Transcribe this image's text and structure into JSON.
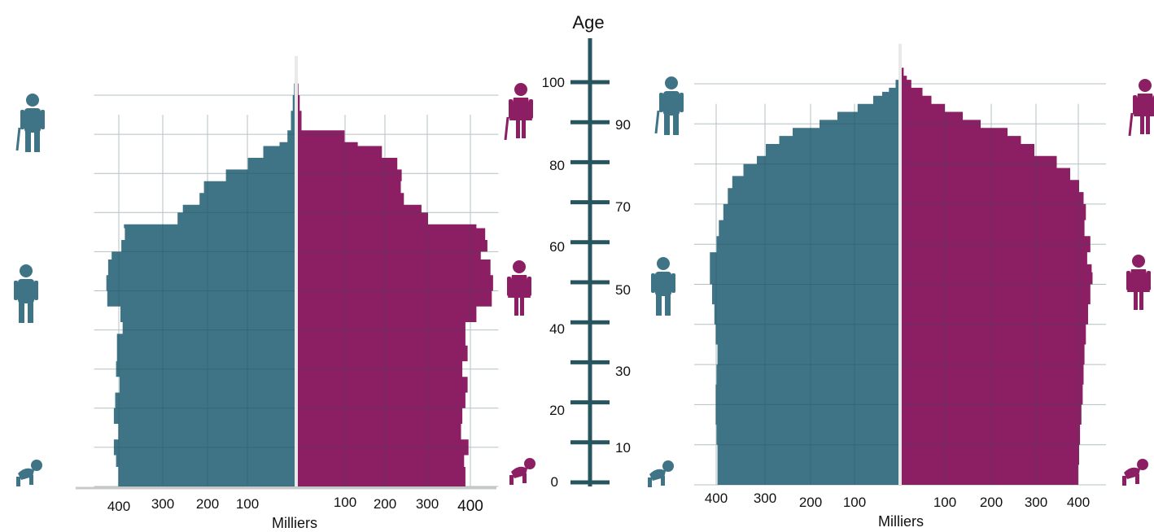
{
  "colors": {
    "male": "#3e7485",
    "female": "#8c1f64",
    "axis": "#26555f",
    "grid": "#2a4f58"
  },
  "icons": {
    "left_male": [
      "elderly-man-icon",
      "man-icon",
      "baby-icon"
    ],
    "left_female": [
      "elderly-woman-icon",
      "woman-icon",
      "baby-icon"
    ],
    "right_male": [
      "elderly-man-icon",
      "man-icon",
      "baby-icon"
    ],
    "right_female": [
      "elderly-woman-icon",
      "woman-icon",
      "baby-icon"
    ]
  },
  "age_axis": {
    "title": "Age",
    "left_ticks": [
      "100",
      "80",
      "60",
      "40",
      "20",
      "0"
    ],
    "right_ticks": [
      "90",
      "70",
      "50",
      "30",
      "10"
    ]
  },
  "chart_data": [
    {
      "type": "bar",
      "orientation": "horizontal-population-pyramid",
      "xlabel": "Milliers",
      "x_tick_labels_male": [
        "400",
        "300",
        "200",
        "100"
      ],
      "x_tick_labels_female": [
        "100",
        "200",
        "300",
        "400"
      ],
      "age_range": [
        0,
        100
      ],
      "grid": true,
      "male": [
        [
          0,
          405
        ],
        [
          5,
          410
        ],
        [
          8,
          415
        ],
        [
          12,
          405
        ],
        [
          16,
          415
        ],
        [
          20,
          412
        ],
        [
          24,
          402
        ],
        [
          28,
          410
        ],
        [
          32,
          408
        ],
        [
          36,
          408
        ],
        [
          39,
          395
        ],
        [
          42,
          400
        ],
        [
          46,
          430
        ],
        [
          50,
          432
        ],
        [
          54,
          428
        ],
        [
          58,
          420
        ],
        [
          60,
          398
        ],
        [
          63,
          390
        ],
        [
          66,
          392
        ],
        [
          67,
          270
        ],
        [
          70,
          258
        ],
        [
          72,
          220
        ],
        [
          75,
          210
        ],
        [
          78,
          160
        ],
        [
          81,
          110
        ],
        [
          84,
          75
        ],
        [
          87,
          38
        ],
        [
          88,
          20
        ],
        [
          91,
          12
        ],
        [
          96,
          8
        ],
        [
          100,
          5
        ],
        [
          103,
          3
        ],
        [
          106,
          1
        ]
      ],
      "female": [
        [
          0,
          385
        ],
        [
          5,
          382
        ],
        [
          8,
          392
        ],
        [
          12,
          375
        ],
        [
          16,
          378
        ],
        [
          20,
          385
        ],
        [
          24,
          390
        ],
        [
          28,
          378
        ],
        [
          32,
          390
        ],
        [
          36,
          385
        ],
        [
          39,
          385
        ],
        [
          42,
          410
        ],
        [
          46,
          445
        ],
        [
          50,
          448
        ],
        [
          54,
          442
        ],
        [
          58,
          420
        ],
        [
          60,
          435
        ],
        [
          63,
          430
        ],
        [
          66,
          410
        ],
        [
          67,
          300
        ],
        [
          70,
          285
        ],
        [
          72,
          245
        ],
        [
          75,
          238
        ],
        [
          78,
          240
        ],
        [
          81,
          230
        ],
        [
          84,
          195
        ],
        [
          87,
          140
        ],
        [
          88,
          110
        ],
        [
          91,
          12
        ],
        [
          96,
          8
        ],
        [
          100,
          5
        ],
        [
          103,
          3
        ]
      ]
    },
    {
      "type": "bar",
      "orientation": "horizontal-population-pyramid",
      "xlabel": "Milliers",
      "x_tick_labels_male": [
        "400",
        "300",
        "200",
        "100"
      ],
      "x_tick_labels_female": [
        "100",
        "200",
        "300",
        "400"
      ],
      "age_range": [
        0,
        100
      ],
      "grid": true,
      "male": [
        [
          0,
          408
        ],
        [
          5,
          408
        ],
        [
          10,
          410
        ],
        [
          15,
          412
        ],
        [
          20,
          412
        ],
        [
          25,
          410
        ],
        [
          30,
          408
        ],
        [
          35,
          412
        ],
        [
          40,
          415
        ],
        [
          45,
          420
        ],
        [
          50,
          425
        ],
        [
          55,
          425
        ],
        [
          58,
          410
        ],
        [
          62,
          405
        ],
        [
          66,
          395
        ],
        [
          70,
          385
        ],
        [
          74,
          375
        ],
        [
          77,
          350
        ],
        [
          80,
          320
        ],
        [
          82,
          300
        ],
        [
          85,
          270
        ],
        [
          87,
          240
        ],
        [
          89,
          180
        ],
        [
          91,
          140
        ],
        [
          93,
          95
        ],
        [
          95,
          60
        ],
        [
          97,
          40
        ],
        [
          98,
          25
        ],
        [
          99,
          10
        ]
      ],
      "female": [
        [
          0,
          398
        ],
        [
          5,
          400
        ],
        [
          10,
          402
        ],
        [
          15,
          405
        ],
        [
          20,
          408
        ],
        [
          25,
          410
        ],
        [
          30,
          412
        ],
        [
          35,
          415
        ],
        [
          40,
          420
        ],
        [
          45,
          425
        ],
        [
          50,
          430
        ],
        [
          53,
          428
        ],
        [
          55,
          418
        ],
        [
          58,
          425
        ],
        [
          62,
          412
        ],
        [
          66,
          415
        ],
        [
          70,
          410
        ],
        [
          73,
          400
        ],
        [
          76,
          380
        ],
        [
          79,
          350
        ],
        [
          82,
          300
        ],
        [
          85,
          270
        ],
        [
          87,
          240
        ],
        [
          89,
          180
        ],
        [
          91,
          140
        ],
        [
          93,
          100
        ],
        [
          95,
          70
        ],
        [
          97,
          50
        ],
        [
          99,
          25
        ],
        [
          101,
          15
        ],
        [
          102,
          8
        ]
      ]
    }
  ]
}
